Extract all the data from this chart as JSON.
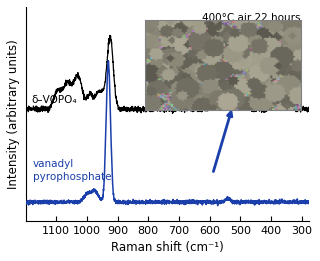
{
  "title": "",
  "xlabel": "Raman shift (cm⁻¹)",
  "ylabel": "Intensity (arbitrary units)",
  "xmin": 1200,
  "xmax": 275,
  "background_color": "#ffffff",
  "black_label": "δ–VOPO₄",
  "blue_label": "vanadyl\npyrophosphate",
  "annotation_text": "400°C air 22 hours",
  "line_color_black": "#000000",
  "line_color_blue": "#1a3faa"
}
